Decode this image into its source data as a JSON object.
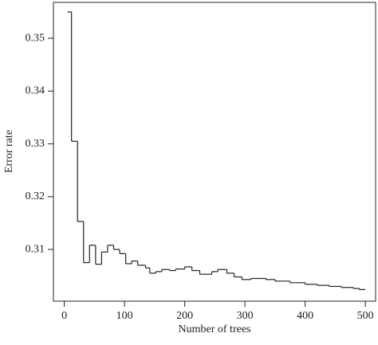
{
  "chart_data": {
    "type": "line",
    "step": true,
    "color": "#222222",
    "x_label": "Number of trees",
    "y_label": "Error rate",
    "x": [
      5,
      12,
      22,
      32,
      42,
      52,
      62,
      72,
      82,
      92,
      102,
      112,
      122,
      135,
      142,
      152,
      162,
      175,
      185,
      200,
      212,
      225,
      245,
      255,
      270,
      282,
      295,
      310,
      335,
      350,
      375,
      400,
      420,
      440,
      460,
      480,
      490,
      500
    ],
    "values": [
      0.355,
      0.3305,
      0.3153,
      0.3075,
      0.3108,
      0.3072,
      0.3095,
      0.3108,
      0.31,
      0.3092,
      0.3073,
      0.3078,
      0.307,
      0.3065,
      0.3055,
      0.3058,
      0.3062,
      0.306,
      0.3063,
      0.3067,
      0.306,
      0.3053,
      0.3058,
      0.3062,
      0.3055,
      0.3048,
      0.3043,
      0.3045,
      0.3043,
      0.304,
      0.3037,
      0.3034,
      0.3032,
      0.303,
      0.3028,
      0.3026,
      0.3024,
      0.3024
    ],
    "xlim": [
      -18,
      517
    ],
    "ylim": [
      0.3002,
      0.3568
    ],
    "xticks": [
      0,
      100,
      200,
      300,
      400,
      500
    ],
    "yticks": [
      0.31,
      0.32,
      0.33,
      0.34,
      0.35
    ],
    "grid": false
  }
}
